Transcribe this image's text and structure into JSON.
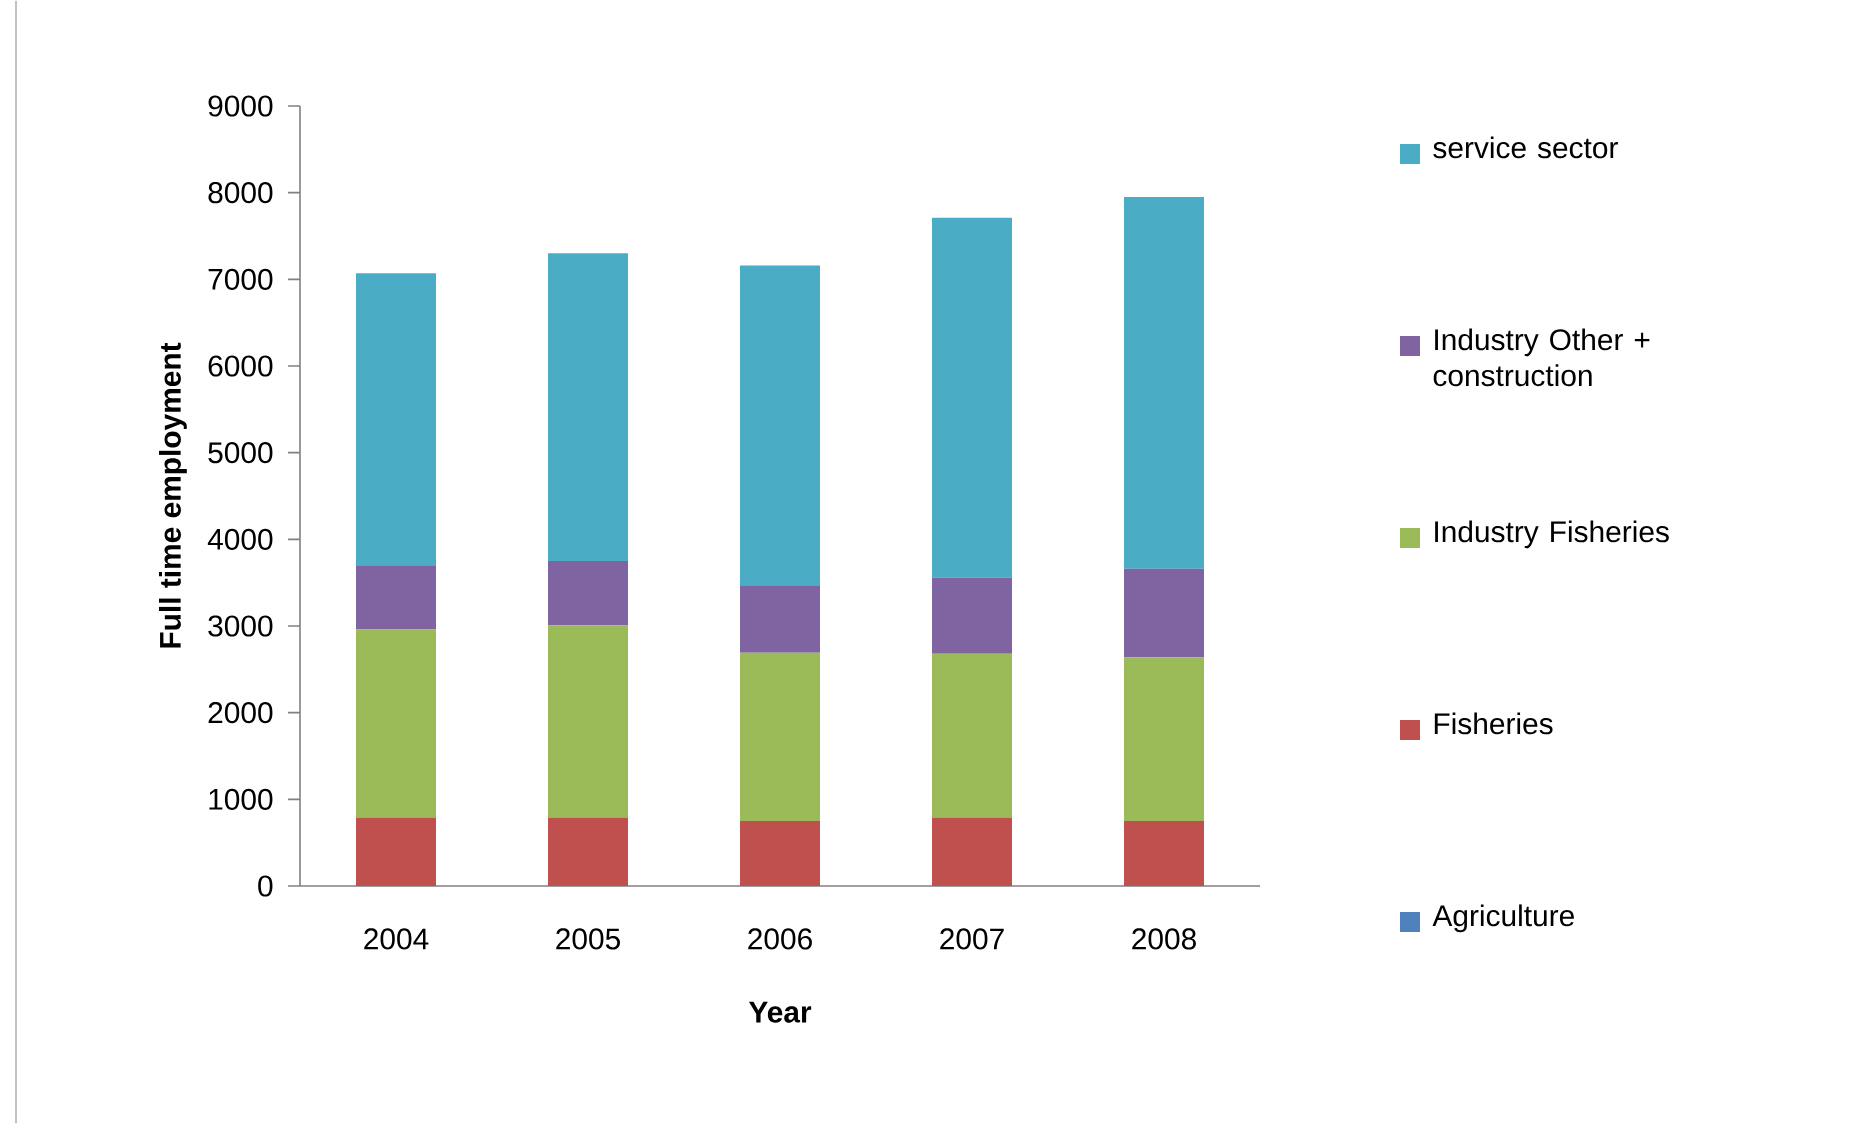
{
  "chart_data": {
    "type": "bar",
    "stacked": true,
    "xlabel": "Year",
    "ylabel": "Full time employment",
    "categories": [
      "2004",
      "2005",
      "2006",
      "2007",
      "2008"
    ],
    "series": [
      {
        "name": "Agriculture",
        "color": "#4f81bd",
        "values": [
          0,
          0,
          0,
          0,
          0
        ]
      },
      {
        "name": "Fisheries",
        "color": "#c0504d",
        "values": [
          790,
          790,
          750,
          790,
          750
        ]
      },
      {
        "name": "Industry Fisheries",
        "color": "#9bbb59",
        "values": [
          2170,
          2220,
          1940,
          1890,
          1890
        ]
      },
      {
        "name": "Industry Other + construction",
        "color": "#8064a2",
        "values": [
          740,
          740,
          780,
          880,
          1020
        ]
      },
      {
        "name": "service sector",
        "color": "#4bacc6",
        "values": [
          3370,
          3550,
          3690,
          4150,
          4290
        ]
      }
    ],
    "ylim": [
      0,
      9000
    ],
    "yticks": [
      0,
      1000,
      2000,
      3000,
      4000,
      5000,
      6000,
      7000,
      8000,
      9000
    ],
    "grid": false,
    "legend": "right"
  }
}
